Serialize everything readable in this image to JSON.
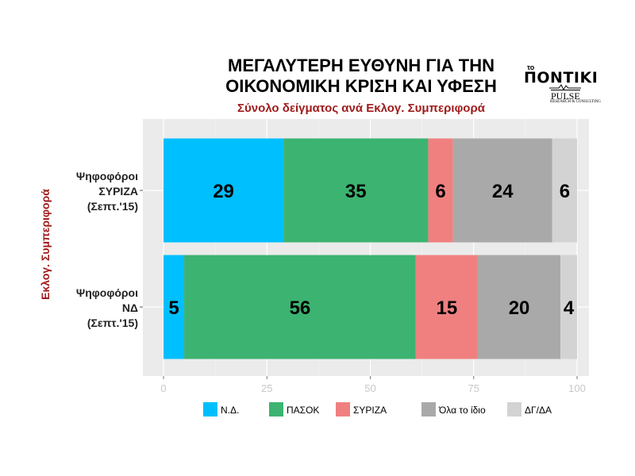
{
  "header": {
    "title_line1": "ΜΕΓΑΛΥΤΕΡΗ ΕΥΘΥΝΗ ΓΙΑ ΤΗΝ",
    "title_line2": "ΟΙΚΟΝΟΜΙΚΗ ΚΡΙΣΗ ΚΑΙ ΥΦΕΣΗ",
    "subtitle": "Σύνολο δείγματος ανά Εκλογ. Συμπεριφορά"
  },
  "logo": {
    "small": "το",
    "big": "ΠΟΝΤΙΚΙ",
    "pulse": "PULSE",
    "tag": "RESEARCH & CONSULTING"
  },
  "chart_data": {
    "type": "bar",
    "orientation": "horizontal",
    "stacked": true,
    "ylabel": "Εκλογ. Συμπεριφορά",
    "categories": [
      [
        "Ψηφοφόροι",
        "ΣΥΡΙΖΑ",
        "(Σεπτ.'15)"
      ],
      [
        "Ψηφοφόροι",
        "ΝΔ",
        "(Σεπτ.'15)"
      ]
    ],
    "series": [
      {
        "name": "Ν.Δ.",
        "color": "#00bfff",
        "values": [
          29,
          5
        ]
      },
      {
        "name": "ΠΑΣΟΚ",
        "color": "#3cb371",
        "values": [
          35,
          56
        ]
      },
      {
        "name": "ΣΥΡΙΖΑ",
        "color": "#f08080",
        "values": [
          6,
          15
        ]
      },
      {
        "name": "Όλα το ίδιο",
        "color": "#a9a9a9",
        "values": [
          24,
          20
        ]
      },
      {
        "name": "ΔΓ/ΔΑ",
        "color": "#d3d3d3",
        "values": [
          6,
          4
        ]
      }
    ],
    "xticks": [
      "0",
      "25",
      "50",
      "75",
      "100"
    ],
    "xlim": [
      0,
      100
    ],
    "grid": true,
    "legend": "bottom",
    "background": "#ebebeb"
  }
}
